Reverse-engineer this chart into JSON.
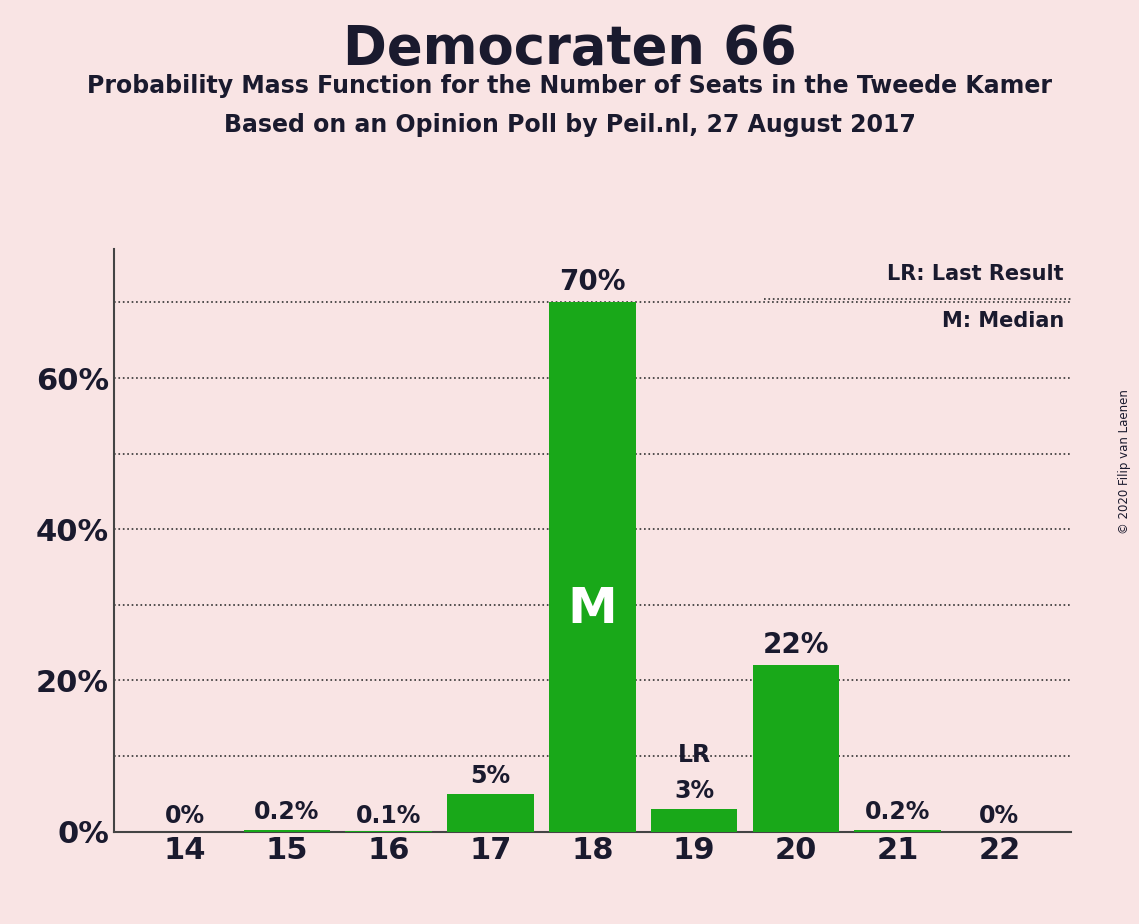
{
  "title": "Democraten 66",
  "subtitle1": "Probability Mass Function for the Number of Seats in the Tweede Kamer",
  "subtitle2": "Based on an Opinion Poll by Peil.nl, 27 August 2017",
  "copyright": "© 2020 Filip van Laenen",
  "seats": [
    14,
    15,
    16,
    17,
    18,
    19,
    20,
    21,
    22
  ],
  "probabilities": [
    0.0,
    0.2,
    0.1,
    5.0,
    70.0,
    3.0,
    22.0,
    0.2,
    0.0
  ],
  "labels": [
    "0%",
    "0.2%",
    "0.1%",
    "5%",
    "70%",
    "3%",
    "22%",
    "0.2%",
    "0%"
  ],
  "bar_color": "#19a819",
  "background_color": "#f9e4e4",
  "median_seat": 18,
  "last_result_seat": 19,
  "ylim_max": 77,
  "ytick_positions": [
    0,
    10,
    20,
    30,
    40,
    50,
    60,
    70
  ],
  "ytick_labels": [
    "0%",
    "",
    "20%",
    "",
    "40%",
    "",
    "60%",
    ""
  ],
  "grid_lines": [
    10,
    20,
    30,
    40,
    50,
    60,
    70
  ],
  "grid_color": "#333333",
  "text_color": "#1a1a2e",
  "legend_lr": "LR: Last Result",
  "legend_m": "M: Median",
  "m_label": "M",
  "lr_label": "LR"
}
